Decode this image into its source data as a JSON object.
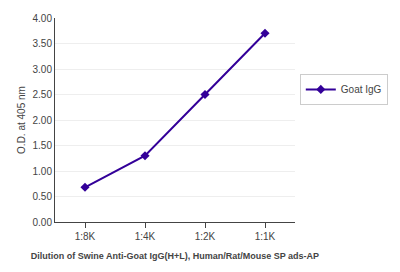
{
  "chart_data": {
    "type": "line",
    "categories": [
      "1:8K",
      "1:4K",
      "1:2K",
      "1:1K"
    ],
    "series": [
      {
        "name": "Goat IgG",
        "color": "#330099",
        "marker": "diamond",
        "values": [
          0.68,
          1.3,
          2.5,
          3.7
        ]
      }
    ],
    "xlabel": "Dilution of Swine Anti-Goat IgG(H+L), Human/Rat/Mouse SP ads-AP",
    "ylabel": "O.D. at 405 nm",
    "ylim": [
      0.0,
      4.0
    ],
    "yticks": [
      {
        "value": 0.0,
        "label": "0.00"
      },
      {
        "value": 0.5,
        "label": "0.50"
      },
      {
        "value": 1.0,
        "label": "1.00"
      },
      {
        "value": 1.5,
        "label": "1.50"
      },
      {
        "value": 2.0,
        "label": "2.00"
      },
      {
        "value": 2.5,
        "label": "2.50"
      },
      {
        "value": 3.0,
        "label": "3.00"
      },
      {
        "value": 3.5,
        "label": "3.50"
      },
      {
        "value": 4.0,
        "label": "4.00"
      }
    ],
    "grid": true,
    "legend": "right"
  }
}
